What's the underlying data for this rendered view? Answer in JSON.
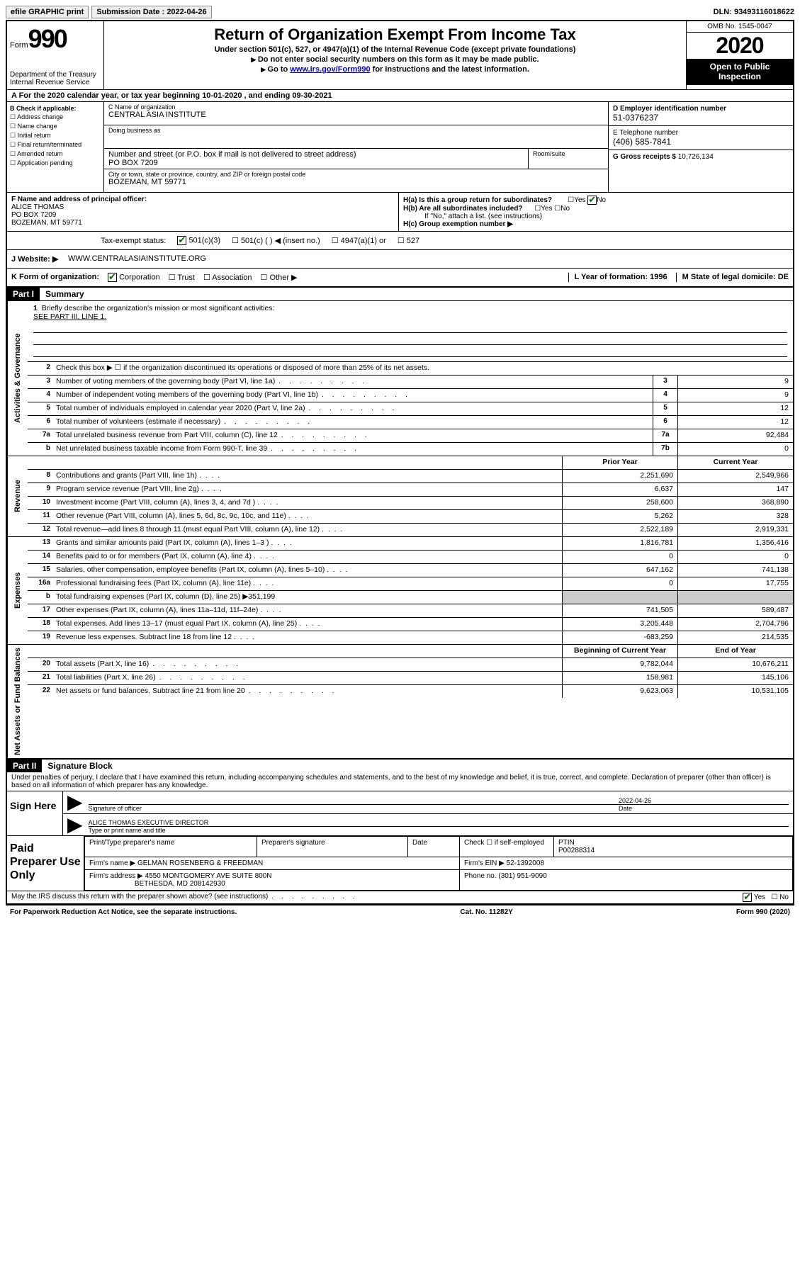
{
  "topbar": {
    "efile": "efile GRAPHIC print",
    "submission_label": "Submission Date : 2022-04-26",
    "dln_label": "DLN: 93493116018622"
  },
  "header": {
    "form_label": "Form",
    "form_num": "990",
    "dept": "Department of the Treasury\nInternal Revenue Service",
    "title": "Return of Organization Exempt From Income Tax",
    "subtitle": "Under section 501(c), 527, or 4947(a)(1) of the Internal Revenue Code (except private foundations)",
    "line1": "Do not enter social security numbers on this form as it may be made public.",
    "line2_pre": "Go to ",
    "line2_link": "www.irs.gov/Form990",
    "line2_post": " for instructions and the latest information.",
    "omb": "OMB No. 1545-0047",
    "year": "2020",
    "open": "Open to Public Inspection"
  },
  "row_a": "A For the 2020 calendar year, or tax year beginning 10-01-2020    , and ending 09-30-2021",
  "col_b": {
    "header": "B Check if applicable:",
    "items": [
      "Address change",
      "Name change",
      "Initial return",
      "Final return/terminated",
      "Amended return",
      "Application pending"
    ]
  },
  "col_c": {
    "name_lbl": "C Name of organization",
    "name_val": "CENTRAL ASIA INSTITUTE",
    "dba_lbl": "Doing business as",
    "addr_lbl": "Number and street (or P.O. box if mail is not delivered to street address)",
    "room_lbl": "Room/suite",
    "addr_val": "PO BOX 7209",
    "city_lbl": "City or town, state or province, country, and ZIP or foreign postal code",
    "city_val": "BOZEMAN, MT  59771"
  },
  "col_d": {
    "ein_lbl": "D Employer identification number",
    "ein_val": "51-0376237",
    "tel_lbl": "E Telephone number",
    "tel_val": "(406) 585-7841",
    "gross_lbl": "G Gross receipts $ ",
    "gross_val": "10,726,134"
  },
  "row_f": {
    "f_lbl": "F Name and address of principal officer:",
    "f_val": "ALICE THOMAS\nPO BOX 7209\nBOZEMAN, MT  59771",
    "ha": "H(a)  Is this a group return for subordinates?",
    "hb": "H(b)  Are all subordinates included?",
    "hb_note": "If \"No,\" attach a list. (see instructions)",
    "hc": "H(c)  Group exemption number ▶"
  },
  "tax_status": {
    "lbl": "Tax-exempt status:",
    "opts": [
      "501(c)(3)",
      "501(c) (  ) ◀ (insert no.)",
      "4947(a)(1) or",
      "527"
    ]
  },
  "website": {
    "lbl": "J Website: ▶",
    "val": "WWW.CENTRALASIAINSTITUTE.ORG"
  },
  "row_k": {
    "k": "K Form of organization:",
    "opts": [
      "Corporation",
      "Trust",
      "Association",
      "Other ▶"
    ],
    "l": "L Year of formation: 1996",
    "m": "M State of legal domicile: DE"
  },
  "part1": {
    "label": "Part I",
    "title": "Summary"
  },
  "mission": {
    "num": "1",
    "text": "Briefly describe the organization's mission or most significant activities:",
    "val": "SEE PART III, LINE 1."
  },
  "gov_lines": [
    {
      "n": "2",
      "d": "Check this box ▶ ☐  if the organization discontinued its operations or disposed of more than 25% of its net assets."
    },
    {
      "n": "3",
      "d": "Number of voting members of the governing body (Part VI, line 1a)",
      "box": "3",
      "v": "9"
    },
    {
      "n": "4",
      "d": "Number of independent voting members of the governing body (Part VI, line 1b)",
      "box": "4",
      "v": "9"
    },
    {
      "n": "5",
      "d": "Total number of individuals employed in calendar year 2020 (Part V, line 2a)",
      "box": "5",
      "v": "12"
    },
    {
      "n": "6",
      "d": "Total number of volunteers (estimate if necessary)",
      "box": "6",
      "v": "12"
    },
    {
      "n": "7a",
      "d": "Total unrelated business revenue from Part VIII, column (C), line 12",
      "box": "7a",
      "v": "92,484"
    },
    {
      "n": "b",
      "d": "Net unrelated business taxable income from Form 990-T, line 39",
      "box": "7b",
      "v": "0"
    }
  ],
  "rev_header": {
    "c1": "Prior Year",
    "c2": "Current Year"
  },
  "rev_lines": [
    {
      "n": "8",
      "d": "Contributions and grants (Part VIII, line 1h)",
      "v1": "2,251,690",
      "v2": "2,549,966"
    },
    {
      "n": "9",
      "d": "Program service revenue (Part VIII, line 2g)",
      "v1": "6,637",
      "v2": "147"
    },
    {
      "n": "10",
      "d": "Investment income (Part VIII, column (A), lines 3, 4, and 7d )",
      "v1": "258,600",
      "v2": "368,890"
    },
    {
      "n": "11",
      "d": "Other revenue (Part VIII, column (A), lines 5, 6d, 8c, 9c, 10c, and 11e)",
      "v1": "5,262",
      "v2": "328"
    },
    {
      "n": "12",
      "d": "Total revenue—add lines 8 through 11 (must equal Part VIII, column (A), line 12)",
      "v1": "2,522,189",
      "v2": "2,919,331"
    }
  ],
  "exp_lines": [
    {
      "n": "13",
      "d": "Grants and similar amounts paid (Part IX, column (A), lines 1–3 )",
      "v1": "1,816,781",
      "v2": "1,356,416"
    },
    {
      "n": "14",
      "d": "Benefits paid to or for members (Part IX, column (A), line 4)",
      "v1": "0",
      "v2": "0"
    },
    {
      "n": "15",
      "d": "Salaries, other compensation, employee benefits (Part IX, column (A), lines 5–10)",
      "v1": "647,162",
      "v2": "741,138"
    },
    {
      "n": "16a",
      "d": "Professional fundraising fees (Part IX, column (A), line 11e)",
      "v1": "0",
      "v2": "17,755"
    },
    {
      "n": "b",
      "d": "Total fundraising expenses (Part IX, column (D), line 25) ▶351,199",
      "gray": true
    },
    {
      "n": "17",
      "d": "Other expenses (Part IX, column (A), lines 11a–11d, 11f–24e)",
      "v1": "741,505",
      "v2": "589,487"
    },
    {
      "n": "18",
      "d": "Total expenses. Add lines 13–17 (must equal Part IX, column (A), line 25)",
      "v1": "3,205,448",
      "v2": "2,704,796"
    },
    {
      "n": "19",
      "d": "Revenue less expenses. Subtract line 18 from line 12",
      "v1": "-683,259",
      "v2": "214,535"
    }
  ],
  "na_header": {
    "c1": "Beginning of Current Year",
    "c2": "End of Year"
  },
  "na_lines": [
    {
      "n": "20",
      "d": "Total assets (Part X, line 16)",
      "v1": "9,782,044",
      "v2": "10,676,211"
    },
    {
      "n": "21",
      "d": "Total liabilities (Part X, line 26)",
      "v1": "158,981",
      "v2": "145,106"
    },
    {
      "n": "22",
      "d": "Net assets or fund balances. Subtract line 21 from line 20",
      "v1": "9,623,063",
      "v2": "10,531,105"
    }
  ],
  "side_labels": {
    "gov": "Activities & Governance",
    "rev": "Revenue",
    "exp": "Expenses",
    "na": "Net Assets or Fund Balances"
  },
  "part2": {
    "label": "Part II",
    "title": "Signature Block"
  },
  "sig": {
    "perjury": "Under penalties of perjury, I declare that I have examined this return, including accompanying schedules and statements, and to the best of my knowledge and belief, it is true, correct, and complete. Declaration of preparer (other than officer) is based on all information of which preparer has any knowledge.",
    "sign_here": "Sign Here",
    "sig_officer": "Signature of officer",
    "date_lbl": "Date",
    "date_val": "2022-04-26",
    "name": "ALICE THOMAS  EXECUTIVE DIRECTOR",
    "name_lbl": "Type or print name and title"
  },
  "paid": {
    "side": "Paid Preparer Use Only",
    "h1": "Print/Type preparer's name",
    "h2": "Preparer's signature",
    "h3": "Date",
    "h4_pre": "Check ☐ if self-employed",
    "h5": "PTIN",
    "ptin": "P00288314",
    "firm_name_lbl": "Firm's name    ▶",
    "firm_name": "GELMAN ROSENBERG & FREEDMAN",
    "firm_ein_lbl": "Firm's EIN ▶",
    "firm_ein": "52-1392008",
    "firm_addr_lbl": "Firm's address ▶",
    "firm_addr": "4550 MONTGOMERY AVE SUITE 800N",
    "firm_city": "BETHESDA, MD  208142930",
    "phone_lbl": "Phone no.",
    "phone": "(301) 951-9090"
  },
  "footer": {
    "irs_q": "May the IRS discuss this return with the preparer shown above? (see instructions)",
    "paperwork": "For Paperwork Reduction Act Notice, see the separate instructions.",
    "cat": "Cat. No. 11282Y",
    "form": "Form 990 (2020)"
  }
}
